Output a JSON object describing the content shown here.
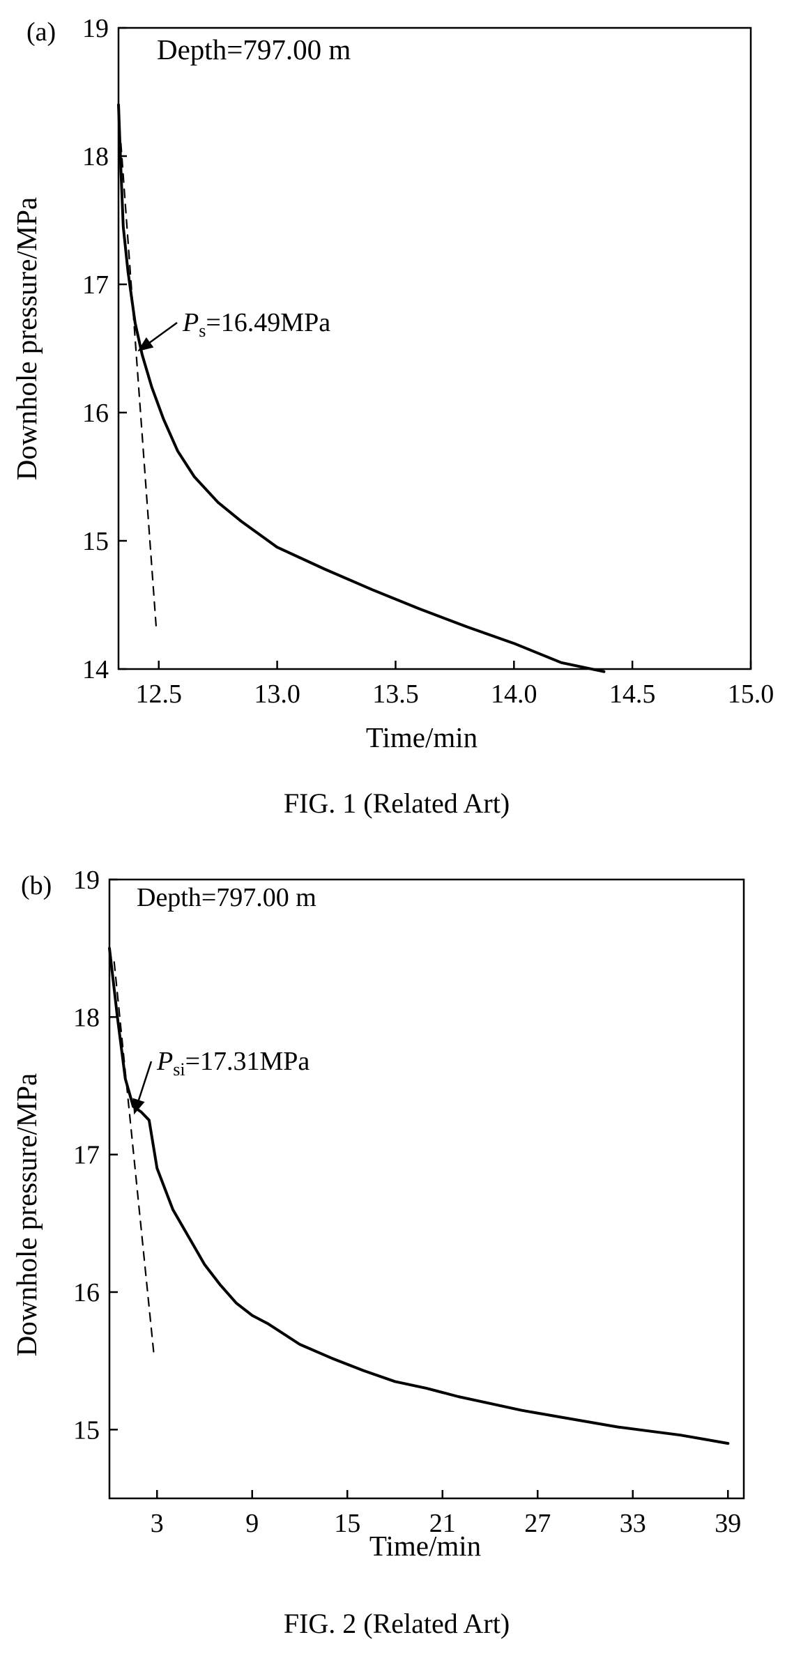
{
  "chart_data": [
    {
      "type": "line",
      "panel_label": "(a)",
      "annotation": "Depth=797.00 m",
      "xlabel": "Time/min",
      "ylabel": "Downhole pressure/MPa",
      "xlim": [
        12.33,
        15.0
      ],
      "ylim": [
        14,
        19
      ],
      "xticks": [
        "12.5",
        "13.0",
        "13.5",
        "14.0",
        "14.5",
        "15.0"
      ],
      "yticks": [
        "14",
        "15",
        "16",
        "17",
        "18",
        "19"
      ],
      "point_label": {
        "symbol": "P",
        "subscript": "s",
        "text": "=16.49MPa",
        "x": 12.42,
        "y": 16.49
      },
      "caption": "FIG. 1 (Related Art)",
      "series": [
        {
          "style": "solid",
          "x": [
            12.33,
            12.34,
            12.35,
            12.37,
            12.4,
            12.43,
            12.47,
            12.52,
            12.58,
            12.65,
            12.75,
            12.85,
            13.0,
            13.2,
            13.4,
            13.6,
            13.8,
            14.0,
            14.2,
            14.38
          ],
          "y": [
            18.4,
            17.9,
            17.45,
            17.1,
            16.7,
            16.45,
            16.2,
            15.95,
            15.7,
            15.5,
            15.3,
            15.15,
            14.95,
            14.78,
            14.62,
            14.47,
            14.33,
            14.2,
            14.05,
            13.98
          ]
        },
        {
          "style": "dashed",
          "x": [
            12.34,
            12.49
          ],
          "y": [
            18.1,
            14.3
          ]
        }
      ]
    },
    {
      "type": "line",
      "panel_label": "(b)",
      "annotation": "Depth=797.00 m",
      "xlabel": "Time/min",
      "ylabel": "Downhole pressure/MPa",
      "xlim": [
        0,
        40
      ],
      "ylim": [
        14.5,
        19
      ],
      "xticks": [
        "3",
        "9",
        "15",
        "21",
        "27",
        "33",
        "39"
      ],
      "yticks": [
        "15",
        "16",
        "17",
        "18",
        "19"
      ],
      "point_label": {
        "symbol": "P",
        "subscript": "si",
        "text": "=17.31MPa",
        "x": 1.6,
        "y": 17.31
      },
      "caption": "FIG. 2 (Related Art)",
      "series": [
        {
          "style": "solid",
          "x": [
            0,
            0.2,
            0.5,
            1.0,
            1.5,
            2.0,
            2.5,
            3.0,
            4,
            5,
            6,
            7,
            8,
            9,
            10,
            12,
            14,
            16,
            18,
            20,
            22,
            24,
            26,
            28,
            30,
            32,
            34,
            36,
            38,
            39
          ],
          "y": [
            18.5,
            18.3,
            18.0,
            17.55,
            17.35,
            17.31,
            17.25,
            16.9,
            16.6,
            16.4,
            16.2,
            16.05,
            15.92,
            15.83,
            15.77,
            15.62,
            15.52,
            15.43,
            15.35,
            15.3,
            15.24,
            15.19,
            15.14,
            15.1,
            15.06,
            15.02,
            14.99,
            14.96,
            14.92,
            14.9
          ]
        },
        {
          "style": "dashed",
          "x": [
            0.3,
            2.8
          ],
          "y": [
            18.4,
            15.55
          ]
        }
      ]
    }
  ]
}
